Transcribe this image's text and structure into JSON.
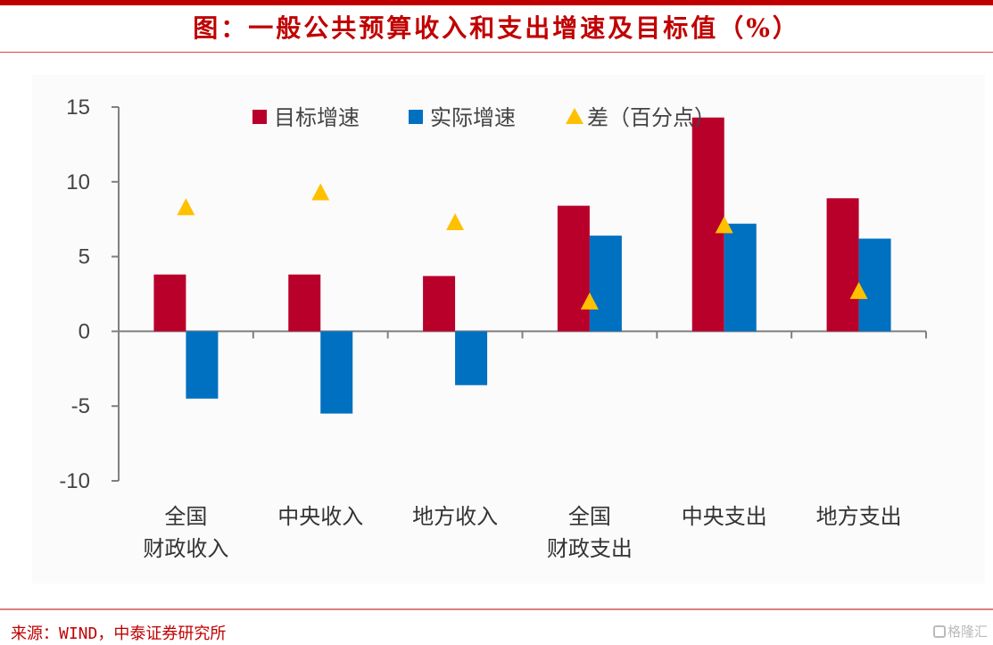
{
  "header": {
    "title": "图：一般公共预算收入和支出增速及目标值（%）"
  },
  "footer": {
    "source": "来源：WIND，中泰证券研究所",
    "watermark": "格隆汇"
  },
  "colors": {
    "target": "#b8002b",
    "actual": "#0070c0",
    "diff": "#ffc000",
    "axis": "#808080",
    "accent": "#c00000"
  },
  "chart_data": {
    "type": "bar",
    "title": "一般公共预算收入和支出增速及目标值（%）",
    "xlabel": "",
    "ylabel": "",
    "ylim": [
      -10,
      15
    ],
    "yticks": [
      15,
      10,
      5,
      0,
      -5,
      -10
    ],
    "grid": false,
    "legend_position": "top",
    "categories": [
      [
        "全国",
        "财政收入"
      ],
      [
        "中央收入"
      ],
      [
        "地方收入"
      ],
      [
        "全国",
        "财政支出"
      ],
      [
        "中央支出"
      ],
      [
        "地方支出"
      ]
    ],
    "series": [
      {
        "name": "目标增速",
        "kind": "bar",
        "values": [
          3.8,
          3.8,
          3.7,
          8.4,
          14.3,
          8.9
        ]
      },
      {
        "name": "实际增速",
        "kind": "bar",
        "values": [
          -4.5,
          -5.5,
          -3.6,
          6.4,
          7.2,
          6.2
        ]
      },
      {
        "name": "差（百分点）",
        "kind": "marker-triangle",
        "values": [
          8.3,
          9.3,
          7.3,
          2.0,
          7.1,
          2.7
        ]
      }
    ]
  }
}
